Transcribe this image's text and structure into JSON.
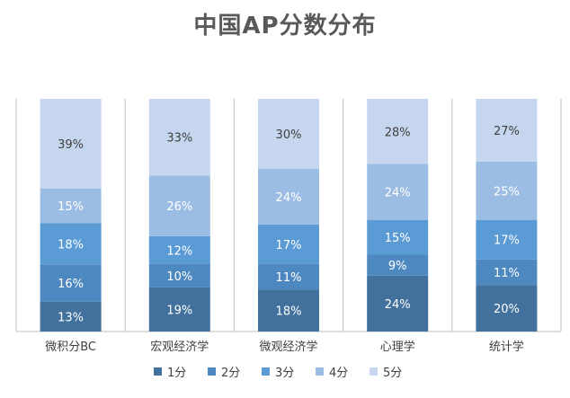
{
  "chart_data": {
    "type": "bar",
    "stacked": true,
    "percent_stacked": true,
    "title": "中国AP分数分布",
    "xlabel": "",
    "ylabel": "",
    "categories": [
      "微积分BC",
      "宏观经济学",
      "微观经济学",
      "心理学",
      "统计学"
    ],
    "series": [
      {
        "name": "1分",
        "values": [
          13,
          19,
          18,
          24,
          20
        ],
        "labels": [
          "13%",
          "19%",
          "18%",
          "24%",
          "20%"
        ],
        "color": "#41719c",
        "label_color": "#ffffff"
      },
      {
        "name": "2分",
        "values": [
          16,
          10,
          11,
          9,
          11
        ],
        "labels": [
          "16%",
          "10%",
          "11%",
          "9%",
          "11%"
        ],
        "color": "#4e88c0",
        "label_color": "#ffffff"
      },
      {
        "name": "3分",
        "values": [
          18,
          12,
          17,
          15,
          17
        ],
        "labels": [
          "18%",
          "12%",
          "17%",
          "15%",
          "17%"
        ],
        "color": "#5b9bd5",
        "label_color": "#ffffff"
      },
      {
        "name": "4分",
        "values": [
          15,
          26,
          24,
          24,
          25
        ],
        "labels": [
          "15%",
          "26%",
          "24%",
          "24%",
          "25%"
        ],
        "color": "#9cbde3",
        "label_color": "#ffffff"
      },
      {
        "name": "5分",
        "values": [
          39,
          33,
          30,
          28,
          27
        ],
        "labels": [
          "39%",
          "33%",
          "30%",
          "28%",
          "27%"
        ],
        "color": "#c5d6ee",
        "label_color": "#404040"
      }
    ],
    "grid": false,
    "legend_position": "bottom"
  },
  "colors": {
    "title": "#595959",
    "axis": "#bfbfbf",
    "text": "#404040"
  }
}
